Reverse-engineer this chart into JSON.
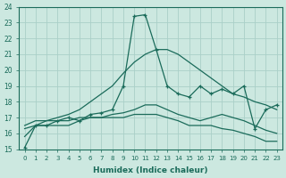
{
  "xlabel": "Humidex (Indice chaleur)",
  "bg_color": "#cce8e0",
  "grid_color": "#aacfc8",
  "line_color": "#1a6b5a",
  "xlim": [
    -0.5,
    23.5
  ],
  "ylim": [
    15,
    24
  ],
  "yticks": [
    15,
    16,
    17,
    18,
    19,
    20,
    21,
    22,
    23,
    24
  ],
  "xticks": [
    0,
    1,
    2,
    3,
    4,
    5,
    6,
    7,
    8,
    9,
    10,
    11,
    12,
    13,
    14,
    15,
    16,
    17,
    18,
    19,
    20,
    21,
    22,
    23
  ],
  "series1_x": [
    0,
    1,
    2,
    3,
    4,
    5,
    6,
    7,
    8,
    9,
    10,
    11,
    12,
    13,
    14,
    15,
    16,
    17,
    18,
    19,
    20,
    21,
    22,
    23
  ],
  "series1_y": [
    15.1,
    16.5,
    16.5,
    16.8,
    17.0,
    16.8,
    17.2,
    17.3,
    17.5,
    19.0,
    23.4,
    23.5,
    21.3,
    19.0,
    18.5,
    18.3,
    19.0,
    18.5,
    18.8,
    18.5,
    19.0,
    16.3,
    17.5,
    17.8
  ],
  "series2_x": [
    0,
    1,
    2,
    3,
    4,
    5,
    6,
    7,
    8,
    9,
    10,
    11,
    12,
    13,
    14,
    15,
    16,
    17,
    18,
    19,
    20,
    21,
    22,
    23
  ],
  "series2_y": [
    15.8,
    16.5,
    16.8,
    17.0,
    17.2,
    17.5,
    18.0,
    18.5,
    19.0,
    19.8,
    20.5,
    21.0,
    21.3,
    21.3,
    21.0,
    20.5,
    20.0,
    19.5,
    19.0,
    18.5,
    18.3,
    18.0,
    17.8,
    17.5
  ],
  "series3_x": [
    0,
    1,
    2,
    3,
    4,
    5,
    6,
    7,
    8,
    9,
    10,
    11,
    12,
    13,
    14,
    15,
    16,
    17,
    18,
    19,
    20,
    21,
    22,
    23
  ],
  "series3_y": [
    16.5,
    16.8,
    16.8,
    16.8,
    16.8,
    17.0,
    17.0,
    17.0,
    17.2,
    17.3,
    17.5,
    17.8,
    17.8,
    17.5,
    17.2,
    17.0,
    16.8,
    17.0,
    17.2,
    17.0,
    16.8,
    16.5,
    16.2,
    16.0
  ],
  "series4_x": [
    0,
    1,
    2,
    3,
    4,
    5,
    6,
    7,
    8,
    9,
    10,
    11,
    12,
    13,
    14,
    15,
    16,
    17,
    18,
    19,
    20,
    21,
    22,
    23
  ],
  "series4_y": [
    16.3,
    16.5,
    16.5,
    16.5,
    16.5,
    16.8,
    17.0,
    17.0,
    17.0,
    17.0,
    17.2,
    17.2,
    17.2,
    17.0,
    16.8,
    16.5,
    16.5,
    16.5,
    16.3,
    16.2,
    16.0,
    15.8,
    15.5,
    15.5
  ]
}
